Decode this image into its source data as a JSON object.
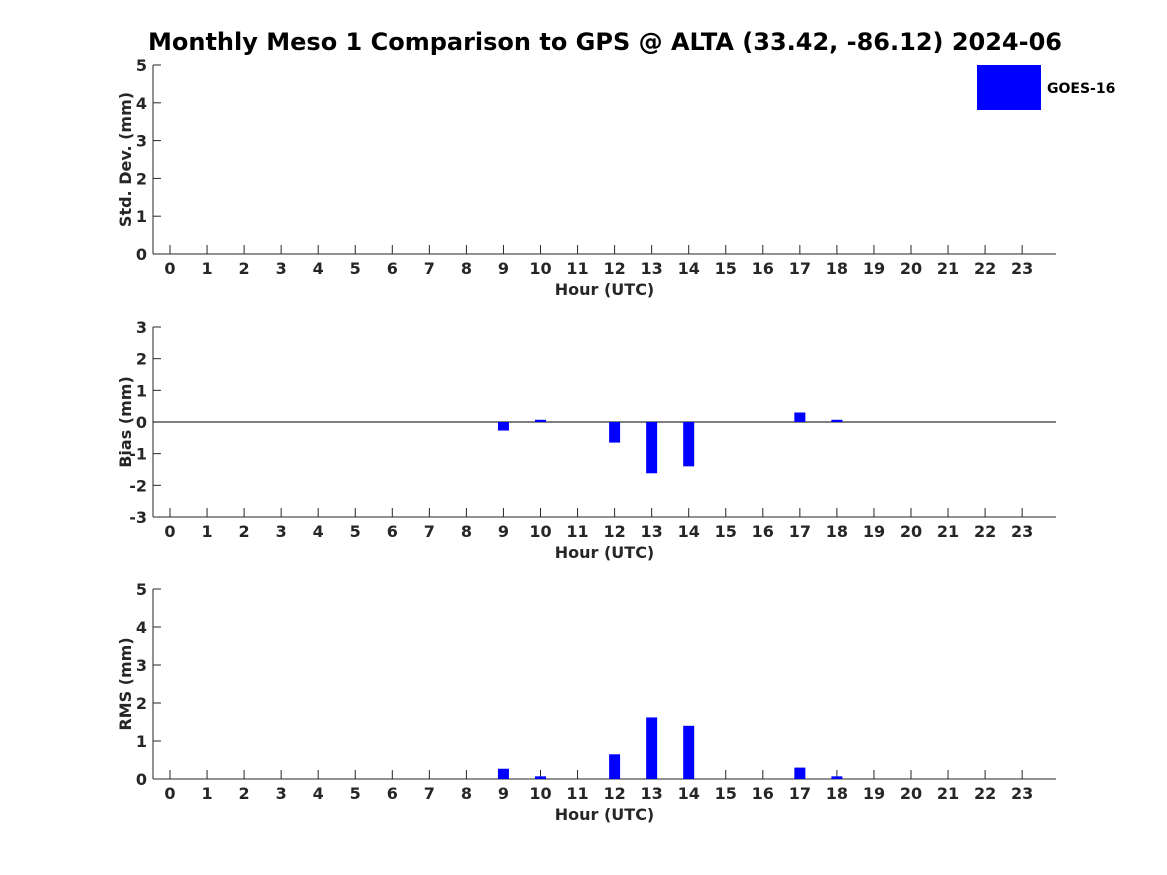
{
  "chart_data": {
    "title": "Monthly Meso 1 Comparison to GPS @ ALTA (33.42, -86.12) 2024-06",
    "legend": {
      "label": "GOES-16",
      "color": "#0000ff",
      "placement": "top-right"
    },
    "panels": [
      {
        "type": "bar",
        "name": "stddev",
        "xlabel": "Hour (UTC)",
        "ylabel": "Std. Dev. (mm)",
        "ylim": [
          0,
          5
        ],
        "yticks": [
          0,
          1,
          2,
          3,
          4,
          5
        ],
        "categories": [
          0,
          1,
          2,
          3,
          4,
          5,
          6,
          7,
          8,
          9,
          10,
          11,
          12,
          13,
          14,
          15,
          16,
          17,
          18,
          19,
          20,
          21,
          22,
          23
        ],
        "values": [
          0,
          0,
          0,
          0,
          0,
          0,
          0,
          0,
          0,
          0,
          0,
          0,
          0,
          0,
          0,
          0,
          0,
          0,
          0,
          0,
          0,
          0,
          0,
          0
        ],
        "zero_line": false
      },
      {
        "type": "bar",
        "name": "bias",
        "xlabel": "Hour (UTC)",
        "ylabel": "Bias (mm)",
        "ylim": [
          -3,
          3
        ],
        "yticks": [
          -3,
          -2,
          -1,
          0,
          1,
          2,
          3
        ],
        "categories": [
          0,
          1,
          2,
          3,
          4,
          5,
          6,
          7,
          8,
          9,
          10,
          11,
          12,
          13,
          14,
          15,
          16,
          17,
          18,
          19,
          20,
          21,
          22,
          23
        ],
        "values": [
          0,
          0,
          0,
          0,
          0,
          0,
          0,
          0,
          0,
          -0.27,
          0.07,
          0,
          -0.65,
          -1.62,
          -1.4,
          0,
          0,
          0.3,
          0.07,
          0,
          0,
          0,
          0,
          0
        ],
        "zero_line": true
      },
      {
        "type": "bar",
        "name": "rms",
        "xlabel": "Hour (UTC)",
        "ylabel": "RMS (mm)",
        "ylim": [
          0,
          5
        ],
        "yticks": [
          0,
          1,
          2,
          3,
          4,
          5
        ],
        "categories": [
          0,
          1,
          2,
          3,
          4,
          5,
          6,
          7,
          8,
          9,
          10,
          11,
          12,
          13,
          14,
          15,
          16,
          17,
          18,
          19,
          20,
          21,
          22,
          23
        ],
        "values": [
          0,
          0,
          0,
          0,
          0,
          0,
          0,
          0,
          0,
          0.27,
          0.07,
          0,
          0.65,
          1.62,
          1.4,
          0,
          0,
          0.3,
          0.07,
          0,
          0,
          0,
          0,
          0
        ],
        "zero_line": false
      }
    ]
  }
}
